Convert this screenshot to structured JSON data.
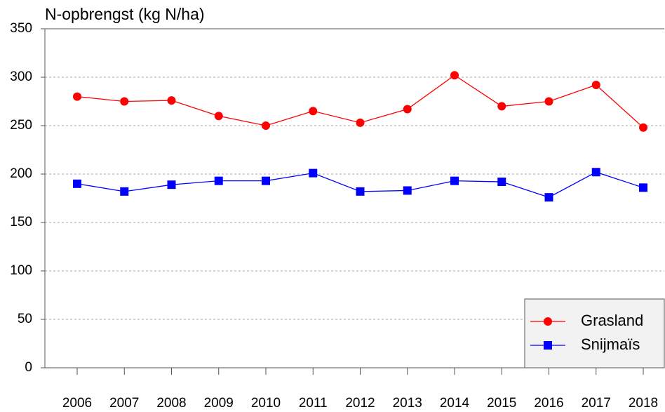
{
  "chart_data": {
    "type": "line",
    "title": "N-opbrengst (kg N/ha)",
    "categories": [
      "2006",
      "2007",
      "2008",
      "2009",
      "2010",
      "2011",
      "2012",
      "2013",
      "2014",
      "2015",
      "2016",
      "2017",
      "2018"
    ],
    "series": [
      {
        "name": "Grasland",
        "color": "#ff0000",
        "marker": "circle",
        "values": [
          280,
          275,
          276,
          260,
          250,
          265,
          253,
          267,
          302,
          270,
          275,
          292,
          248
        ]
      },
      {
        "name": "Snijmaïs",
        "color": "#0000ff",
        "marker": "square",
        "values": [
          190,
          182,
          189,
          193,
          193,
          201,
          182,
          183,
          193,
          192,
          176,
          202,
          186
        ]
      }
    ],
    "ylim": [
      0,
      350
    ],
    "yticks": [
      0,
      50,
      100,
      150,
      200,
      250,
      300,
      350
    ],
    "grid": true,
    "legend": "lower right"
  }
}
